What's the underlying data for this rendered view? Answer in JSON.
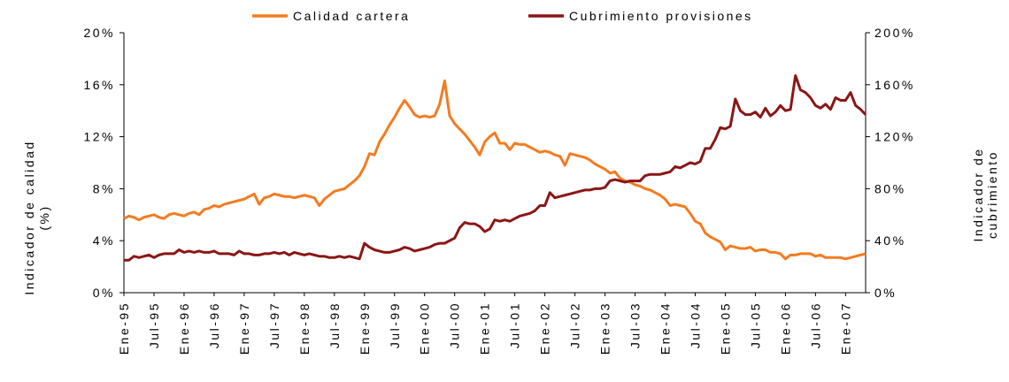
{
  "chart_data": {
    "type": "line",
    "ylabel": [
      "Indicador de calidad",
      "(%)"
    ],
    "y2label": [
      "Indicador de",
      "cubrimiento"
    ],
    "categories": [
      "Ene-95",
      null,
      null,
      null,
      null,
      null,
      "Jul-95",
      null,
      null,
      null,
      null,
      null,
      "Ene-96",
      null,
      null,
      null,
      null,
      null,
      "Jul-96",
      null,
      null,
      null,
      null,
      null,
      "Ene-97",
      null,
      null,
      null,
      null,
      null,
      "Jul-97",
      null,
      null,
      null,
      null,
      null,
      "Ene-98",
      null,
      null,
      null,
      null,
      null,
      "Jul-98",
      null,
      null,
      null,
      null,
      null,
      "Ene-99",
      null,
      null,
      null,
      null,
      null,
      "Jul-99",
      null,
      null,
      null,
      null,
      null,
      "Ene-00",
      null,
      null,
      null,
      null,
      null,
      "Jul-00",
      null,
      null,
      null,
      null,
      null,
      "Ene-01",
      null,
      null,
      null,
      null,
      null,
      "Jul-01",
      null,
      null,
      null,
      null,
      null,
      "Ene-02",
      null,
      null,
      null,
      null,
      null,
      "Jul-02",
      null,
      null,
      null,
      null,
      null,
      "Ene-03",
      null,
      null,
      null,
      null,
      null,
      "Jul-03",
      null,
      null,
      null,
      null,
      null,
      "Ene-04",
      null,
      null,
      null,
      null,
      null,
      "Jul-04",
      null,
      null,
      null,
      null,
      null,
      "Ene-05",
      null,
      null,
      null,
      null,
      null,
      "Jul-05",
      null,
      null,
      null,
      null,
      null,
      "Ene-06",
      null,
      null,
      null,
      null,
      null,
      "Jul-06",
      null,
      null,
      null,
      null,
      null,
      "Ene-07",
      null,
      null,
      null,
      null
    ],
    "series": [
      {
        "name": "Calidad cartera",
        "color": "#f47b20",
        "axis": "y",
        "values": [
          5.7,
          5.9,
          5.8,
          5.6,
          5.8,
          5.9,
          6.0,
          5.8,
          5.7,
          6.0,
          6.1,
          6.0,
          5.9,
          6.1,
          6.2,
          6.0,
          6.4,
          6.5,
          6.7,
          6.6,
          6.8,
          6.9,
          7.0,
          7.1,
          7.2,
          7.4,
          7.6,
          6.8,
          7.3,
          7.4,
          7.6,
          7.5,
          7.4,
          7.4,
          7.3,
          7.4,
          7.5,
          7.4,
          7.3,
          6.7,
          7.2,
          7.5,
          7.8,
          7.9,
          8.0,
          8.3,
          8.6,
          9.0,
          9.7,
          10.7,
          10.6,
          11.6,
          12.2,
          12.9,
          13.5,
          14.2,
          14.8,
          14.3,
          13.7,
          13.5,
          13.6,
          13.5,
          13.6,
          14.5,
          16.3,
          13.6,
          13.0,
          12.6,
          12.2,
          11.7,
          11.2,
          10.6,
          11.6,
          12.0,
          12.3,
          11.5,
          11.5,
          11.0,
          11.5,
          11.4,
          11.4,
          11.2,
          11.0,
          10.8,
          10.9,
          10.8,
          10.6,
          10.5,
          9.8,
          10.7,
          10.6,
          10.5,
          10.4,
          10.2,
          9.9,
          9.7,
          9.5,
          9.2,
          9.3,
          8.8,
          8.6,
          8.5,
          8.3,
          8.2,
          8.0,
          7.9,
          7.7,
          7.5,
          7.2,
          6.7,
          6.8,
          6.7,
          6.6,
          6.1,
          5.5,
          5.3,
          4.6,
          4.3,
          4.1,
          3.9,
          3.3,
          3.6,
          3.5,
          3.4,
          3.4,
          3.5,
          3.2,
          3.3,
          3.3,
          3.1,
          3.1,
          3.0,
          2.6,
          2.9,
          2.9,
          3.0,
          3.0,
          3.0,
          2.8,
          2.9,
          2.7,
          2.7,
          2.7,
          2.7,
          2.6,
          2.7,
          2.8,
          2.9,
          3.0
        ]
      },
      {
        "name": "Cubrimiento provisiones",
        "color": "#8b1616",
        "axis": "y2",
        "values": [
          25,
          25,
          28,
          27,
          28,
          29,
          27,
          29,
          30,
          30,
          30,
          33,
          31,
          32,
          31,
          32,
          31,
          31,
          32,
          30,
          30,
          30,
          29,
          32,
          30,
          30,
          29,
          29,
          30,
          30,
          31,
          30,
          31,
          29,
          31,
          30,
          29,
          30,
          29,
          28,
          28,
          27,
          27,
          28,
          27,
          28,
          27,
          26,
          38,
          35,
          33,
          32,
          31,
          31,
          32,
          33,
          35,
          34,
          32,
          33,
          34,
          35,
          37,
          38,
          38,
          40,
          42,
          50,
          54,
          53,
          53,
          51,
          47,
          49,
          56,
          55,
          56,
          55,
          57,
          59,
          60,
          61,
          63,
          67,
          67,
          77,
          73,
          74,
          75,
          76,
          77,
          78,
          79,
          79,
          80,
          80,
          81,
          86,
          87,
          86,
          85,
          86,
          86,
          86,
          90,
          91,
          91,
          91,
          92,
          93,
          97,
          96,
          98,
          100,
          99,
          101,
          111,
          111,
          118,
          127,
          126,
          128,
          149,
          140,
          137,
          137,
          139,
          135,
          142,
          136,
          139,
          144,
          140,
          141,
          167,
          156,
          154,
          150,
          144,
          142,
          145,
          141,
          150,
          148,
          148,
          154,
          144,
          141,
          137
        ]
      }
    ],
    "ylim": [
      0,
      20
    ],
    "yticks": [
      {
        "value": 0,
        "label": "0%"
      },
      {
        "value": 4,
        "label": "4%"
      },
      {
        "value": 8,
        "label": "8%"
      },
      {
        "value": 12,
        "label": "12%"
      },
      {
        "value": 16,
        "label": "16%"
      },
      {
        "value": 20,
        "label": "20%"
      }
    ],
    "y2lim": [
      0,
      200
    ],
    "y2ticks": [
      {
        "value": 0,
        "label": "0%"
      },
      {
        "value": 40,
        "label": "40%"
      },
      {
        "value": 80,
        "label": "80%"
      },
      {
        "value": 120,
        "label": "120%"
      },
      {
        "value": 160,
        "label": "160%"
      },
      {
        "value": 200,
        "label": "200%"
      }
    ],
    "grid": false,
    "legend": "top"
  }
}
